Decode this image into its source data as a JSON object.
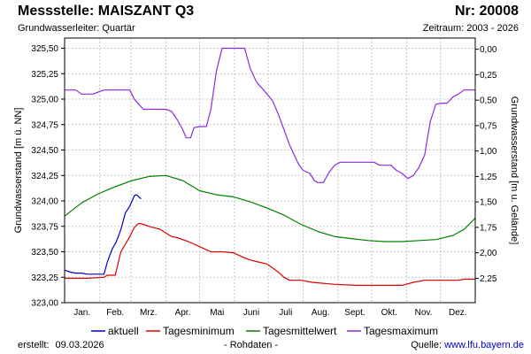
{
  "header": {
    "title": "Messstelle: MAISZANT Q3",
    "subtitle": "Grundwasserleiter: Quartär",
    "nr": "Nr: 20008",
    "period": "Zeitraum: 2003 - 2026"
  },
  "footer": {
    "created_label": "erstellt:",
    "created_date": "09.03.2026",
    "note": "- Rohdaten -",
    "source_label": "Quelle:",
    "source_link": "www.lfu.bayern.de"
  },
  "colors": {
    "aktuell": "#0000cc",
    "min": "#dd0000",
    "mittel": "#008000",
    "max": "#8a2be2",
    "grid": "#c8c8c8",
    "axis": "#000000"
  },
  "chart_data": {
    "type": "line",
    "xlabel": "",
    "ylabel": "Grundwasserstand [m ü. NN]",
    "ylabel_right": "Grundwasserstand [m u. Gelände]",
    "ylim": [
      323.0,
      325.6
    ],
    "ylim_right": [
      2.49,
      -0.11
    ],
    "xlim": [
      0,
      365
    ],
    "yticks": [
      "323,00",
      "323,25",
      "323,50",
      "323,75",
      "324,00",
      "324,25",
      "324,50",
      "324,75",
      "325,00",
      "325,25",
      "325,50"
    ],
    "yticks_right": [
      "0,00",
      "0,25",
      "0,50",
      "0,75",
      "1,00",
      "1,25",
      "1,50",
      "1,75",
      "2,00",
      "2,25"
    ],
    "month_labels": [
      "Jan.",
      "Feb.",
      "Mrz.",
      "Apr.",
      "Mai",
      "Juni",
      "Juli",
      "Aug.",
      "Sept.",
      "Okt.",
      "Nov.",
      "Dez."
    ],
    "grid": true,
    "legend_position": "bottom",
    "series": [
      {
        "name": "aktuell",
        "x": [
          0,
          5,
          10,
          15,
          20,
          25,
          30,
          35,
          38,
          42,
          46,
          50,
          54,
          58,
          62,
          64,
          66,
          68
        ],
        "values": [
          323.32,
          323.3,
          323.29,
          323.29,
          323.28,
          323.28,
          323.28,
          323.28,
          323.4,
          323.52,
          323.6,
          323.72,
          323.88,
          323.95,
          324.05,
          324.06,
          324.04,
          324.02
        ]
      },
      {
        "name": "Tagesminimum",
        "x": [
          0,
          20,
          35,
          38,
          45,
          50,
          58,
          62,
          66,
          70,
          75,
          85,
          95,
          100,
          110,
          120,
          130,
          140,
          150,
          160,
          165,
          172,
          180,
          190,
          195,
          200,
          210,
          220,
          240,
          260,
          280,
          300,
          310,
          320,
          330,
          340,
          350,
          355,
          365
        ],
        "values": [
          323.24,
          323.24,
          323.25,
          323.27,
          323.27,
          323.5,
          323.65,
          323.74,
          323.78,
          323.77,
          323.75,
          323.72,
          323.65,
          323.64,
          323.6,
          323.55,
          323.5,
          323.5,
          323.49,
          323.44,
          323.42,
          323.4,
          323.38,
          323.3,
          323.25,
          323.22,
          323.22,
          323.2,
          323.18,
          323.17,
          323.17,
          323.17,
          323.2,
          323.22,
          323.22,
          323.22,
          323.22,
          323.23,
          323.23
        ]
      },
      {
        "name": "Tagesmittelwert",
        "x": [
          0,
          15,
          30,
          45,
          60,
          75,
          90,
          105,
          120,
          135,
          150,
          165,
          180,
          195,
          210,
          225,
          240,
          255,
          270,
          285,
          300,
          315,
          330,
          345,
          355,
          365
        ],
        "values": [
          323.85,
          323.98,
          324.07,
          324.14,
          324.2,
          324.24,
          324.25,
          324.2,
          324.1,
          324.06,
          324.04,
          323.99,
          323.93,
          323.86,
          323.77,
          323.7,
          323.65,
          323.63,
          323.61,
          323.6,
          323.6,
          323.61,
          323.62,
          323.66,
          323.72,
          323.83
        ]
      },
      {
        "name": "Tagesmaximum",
        "x": [
          0,
          10,
          15,
          25,
          35,
          45,
          50,
          58,
          62,
          66,
          70,
          75,
          80,
          90,
          95,
          100,
          105,
          108,
          112,
          115,
          120,
          126,
          130,
          135,
          140,
          145,
          150,
          155,
          160,
          165,
          170,
          172,
          176,
          180,
          185,
          190,
          195,
          200,
          205,
          208,
          212,
          218,
          222,
          225,
          228,
          230,
          235,
          240,
          245,
          250,
          255,
          260,
          265,
          270,
          275,
          280,
          285,
          290,
          295,
          300,
          305,
          310,
          315,
          320,
          325,
          330,
          335,
          340,
          345,
          350,
          355,
          360,
          365
        ],
        "values": [
          325.09,
          325.09,
          325.05,
          325.05,
          325.09,
          325.09,
          325.09,
          325.09,
          325.0,
          324.95,
          324.9,
          324.9,
          324.9,
          324.9,
          324.88,
          324.8,
          324.7,
          324.62,
          324.62,
          324.72,
          324.73,
          324.73,
          324.9,
          325.28,
          325.5,
          325.5,
          325.5,
          325.5,
          325.5,
          325.3,
          325.18,
          325.15,
          325.1,
          325.05,
          324.98,
          324.85,
          324.7,
          324.55,
          324.43,
          324.36,
          324.3,
          324.27,
          324.2,
          324.18,
          324.18,
          324.18,
          324.28,
          324.35,
          324.38,
          324.38,
          324.38,
          324.38,
          324.38,
          324.38,
          324.38,
          324.35,
          324.35,
          324.35,
          324.3,
          324.27,
          324.22,
          324.25,
          324.33,
          324.45,
          324.78,
          324.95,
          324.96,
          324.96,
          325.02,
          325.05,
          325.09,
          325.09,
          325.09
        ]
      }
    ]
  }
}
